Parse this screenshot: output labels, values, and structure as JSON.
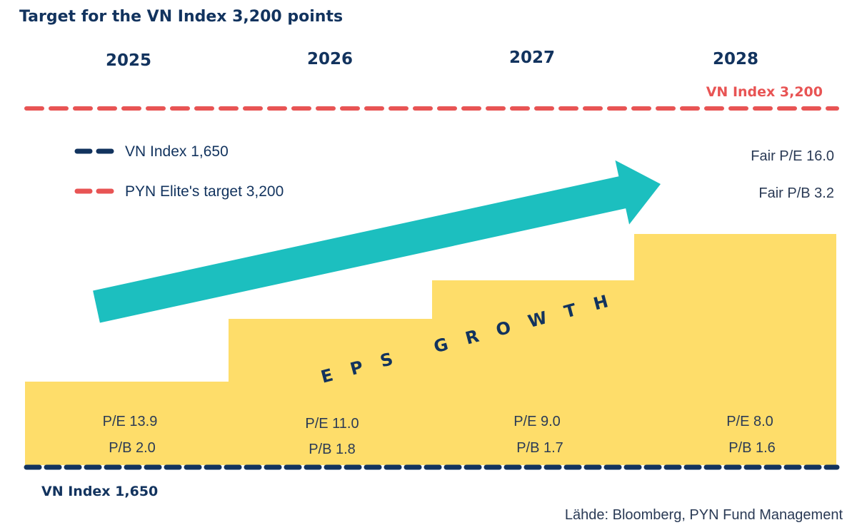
{
  "chart_data": {
    "type": "bar",
    "title": "Target for the VN Index 3,200 points",
    "categories": [
      "2025",
      "2026",
      "2027",
      "2028"
    ],
    "pe_labels": [
      "P/E 13.9",
      "P/E 11.0",
      "P/E 9.0",
      "P/E 8.0"
    ],
    "pb_labels": [
      "P/B 2.0",
      "P/B 1.8",
      "P/B 1.7",
      "P/B 1.6"
    ],
    "pe_values": [
      13.9,
      11.0,
      9.0,
      8.0
    ],
    "pb_values": [
      2.0,
      1.8,
      1.7,
      1.6
    ],
    "fair_pe": "Fair P/E 16.0",
    "fair_pb": "Fair P/B 3.2",
    "lines": {
      "current": {
        "label": "VN Index 1,650",
        "value": 1650,
        "color": "#12335e"
      },
      "target": {
        "label": "VN Index 3,200",
        "value": 3200,
        "color": "#e85454"
      }
    },
    "legend": [
      {
        "label": "VN Index 1,650",
        "color": "#12335e"
      },
      {
        "label": "PYN Elite's target 3,200",
        "color": "#e85454"
      }
    ],
    "annotation": "EPS GROWTH",
    "source": "Lähde: Bloomberg, PYN Fund Management"
  },
  "colors": {
    "steps": "#fedd6a",
    "arrow": "#1cbfbf",
    "navy": "#12335e",
    "red": "#e85454"
  }
}
